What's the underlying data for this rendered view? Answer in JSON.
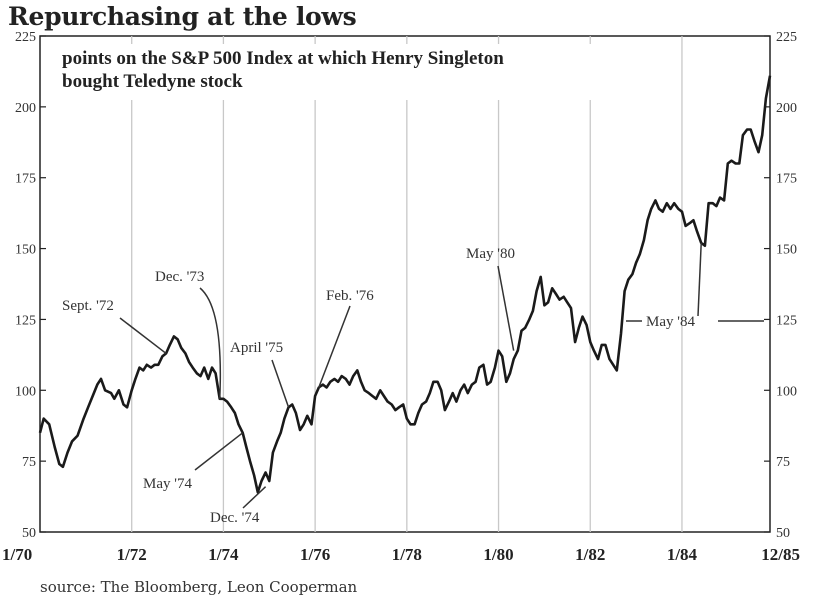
{
  "title": "Repurchasing at the lows",
  "source": "source: The Bloomberg, Leon Cooperman",
  "chart_data": {
    "type": "line",
    "subtitle_lines": [
      "points on the S&P 500 Index at which Henry Singleton",
      "bought Teledyne stock"
    ],
    "xlim": [
      1970.0,
      1985.92
    ],
    "ylim": [
      50,
      225
    ],
    "yticks": [
      50,
      75,
      100,
      125,
      150,
      175,
      200,
      225
    ],
    "xticks": [
      {
        "label": "1/70",
        "x": 1970.0
      },
      {
        "label": "1/72",
        "x": 1972.0
      },
      {
        "label": "1/74",
        "x": 1974.0
      },
      {
        "label": "1/76",
        "x": 1976.0
      },
      {
        "label": "1/78",
        "x": 1978.0
      },
      {
        "label": "1/80",
        "x": 1980.0
      },
      {
        "label": "1/82",
        "x": 1982.0
      },
      {
        "label": "1/84",
        "x": 1984.0
      },
      {
        "label": "12/85",
        "x": 1985.92
      }
    ],
    "grid": "vertical",
    "series": [
      {
        "color": "#1a1a1a",
        "points": [
          [
            1970.0,
            85
          ],
          [
            1970.08,
            90
          ],
          [
            1970.2,
            88
          ],
          [
            1970.32,
            80
          ],
          [
            1970.42,
            74
          ],
          [
            1970.5,
            73
          ],
          [
            1970.6,
            78
          ],
          [
            1970.7,
            82
          ],
          [
            1970.82,
            84
          ],
          [
            1970.95,
            90
          ],
          [
            1971.05,
            94
          ],
          [
            1971.15,
            98
          ],
          [
            1971.25,
            102
          ],
          [
            1971.33,
            104
          ],
          [
            1971.42,
            100
          ],
          [
            1971.55,
            99
          ],
          [
            1971.62,
            97
          ],
          [
            1971.72,
            100
          ],
          [
            1971.82,
            95
          ],
          [
            1971.9,
            94
          ],
          [
            1972.0,
            100
          ],
          [
            1972.08,
            104
          ],
          [
            1972.17,
            108
          ],
          [
            1972.25,
            107
          ],
          [
            1972.33,
            109
          ],
          [
            1972.42,
            108
          ],
          [
            1972.5,
            109
          ],
          [
            1972.58,
            109
          ],
          [
            1972.67,
            112
          ],
          [
            1972.75,
            113
          ],
          [
            1972.83,
            116
          ],
          [
            1972.92,
            119
          ],
          [
            1973.0,
            118
          ],
          [
            1973.08,
            115
          ],
          [
            1973.17,
            113
          ],
          [
            1973.25,
            110
          ],
          [
            1973.33,
            108
          ],
          [
            1973.42,
            106
          ],
          [
            1973.5,
            105
          ],
          [
            1973.58,
            108
          ],
          [
            1973.67,
            104
          ],
          [
            1973.75,
            108
          ],
          [
            1973.83,
            106
          ],
          [
            1973.92,
            97
          ],
          [
            1974.0,
            97
          ],
          [
            1974.08,
            96
          ],
          [
            1974.17,
            94
          ],
          [
            1974.25,
            92
          ],
          [
            1974.33,
            88
          ],
          [
            1974.42,
            85
          ],
          [
            1974.5,
            80
          ],
          [
            1974.58,
            75
          ],
          [
            1974.67,
            70
          ],
          [
            1974.75,
            64
          ],
          [
            1974.83,
            68
          ],
          [
            1974.92,
            71
          ],
          [
            1975.0,
            68
          ],
          [
            1975.08,
            78
          ],
          [
            1975.17,
            82
          ],
          [
            1975.25,
            85
          ],
          [
            1975.33,
            90
          ],
          [
            1975.42,
            94
          ],
          [
            1975.5,
            95
          ],
          [
            1975.58,
            92
          ],
          [
            1975.67,
            86
          ],
          [
            1975.75,
            88
          ],
          [
            1975.83,
            91
          ],
          [
            1975.92,
            88
          ],
          [
            1976.0,
            98
          ],
          [
            1976.08,
            101
          ],
          [
            1976.17,
            102
          ],
          [
            1976.25,
            101
          ],
          [
            1976.33,
            103
          ],
          [
            1976.42,
            104
          ],
          [
            1976.5,
            103
          ],
          [
            1976.58,
            105
          ],
          [
            1976.67,
            104
          ],
          [
            1976.75,
            102
          ],
          [
            1976.83,
            105
          ],
          [
            1976.92,
            107
          ],
          [
            1977.0,
            103
          ],
          [
            1977.08,
            100
          ],
          [
            1977.17,
            99
          ],
          [
            1977.25,
            98
          ],
          [
            1977.33,
            97
          ],
          [
            1977.42,
            100
          ],
          [
            1977.5,
            98
          ],
          [
            1977.58,
            96
          ],
          [
            1977.67,
            95
          ],
          [
            1977.75,
            93
          ],
          [
            1977.83,
            94
          ],
          [
            1977.92,
            95
          ],
          [
            1978.0,
            90
          ],
          [
            1978.08,
            88
          ],
          [
            1978.17,
            88
          ],
          [
            1978.25,
            92
          ],
          [
            1978.33,
            95
          ],
          [
            1978.42,
            96
          ],
          [
            1978.5,
            99
          ],
          [
            1978.58,
            103
          ],
          [
            1978.67,
            103
          ],
          [
            1978.75,
            100
          ],
          [
            1978.83,
            93
          ],
          [
            1978.92,
            96
          ],
          [
            1979.0,
            99
          ],
          [
            1979.08,
            96
          ],
          [
            1979.17,
            100
          ],
          [
            1979.25,
            102
          ],
          [
            1979.33,
            99
          ],
          [
            1979.42,
            102
          ],
          [
            1979.5,
            103
          ],
          [
            1979.58,
            108
          ],
          [
            1979.67,
            109
          ],
          [
            1979.75,
            102
          ],
          [
            1979.83,
            103
          ],
          [
            1979.92,
            108
          ],
          [
            1980.0,
            114
          ],
          [
            1980.08,
            112
          ],
          [
            1980.17,
            103
          ],
          [
            1980.25,
            106
          ],
          [
            1980.33,
            111
          ],
          [
            1980.42,
            114
          ],
          [
            1980.5,
            121
          ],
          [
            1980.58,
            122
          ],
          [
            1980.67,
            125
          ],
          [
            1980.75,
            128
          ],
          [
            1980.83,
            135
          ],
          [
            1980.92,
            140
          ],
          [
            1981.0,
            130
          ],
          [
            1981.08,
            131
          ],
          [
            1981.17,
            136
          ],
          [
            1981.25,
            134
          ],
          [
            1981.33,
            132
          ],
          [
            1981.42,
            133
          ],
          [
            1981.5,
            131
          ],
          [
            1981.58,
            129
          ],
          [
            1981.67,
            117
          ],
          [
            1981.75,
            122
          ],
          [
            1981.83,
            126
          ],
          [
            1981.92,
            123
          ],
          [
            1982.0,
            117
          ],
          [
            1982.08,
            114
          ],
          [
            1982.17,
            111
          ],
          [
            1982.25,
            116
          ],
          [
            1982.33,
            116
          ],
          [
            1982.42,
            111
          ],
          [
            1982.5,
            109
          ],
          [
            1982.58,
            107
          ],
          [
            1982.67,
            120
          ],
          [
            1982.75,
            135
          ],
          [
            1982.83,
            139
          ],
          [
            1982.92,
            141
          ],
          [
            1983.0,
            145
          ],
          [
            1983.08,
            148
          ],
          [
            1983.17,
            153
          ],
          [
            1983.25,
            160
          ],
          [
            1983.33,
            164
          ],
          [
            1983.42,
            167
          ],
          [
            1983.5,
            164
          ],
          [
            1983.58,
            163
          ],
          [
            1983.67,
            166
          ],
          [
            1983.75,
            164
          ],
          [
            1983.83,
            166
          ],
          [
            1983.92,
            164
          ],
          [
            1984.0,
            163
          ],
          [
            1984.08,
            158
          ],
          [
            1984.17,
            159
          ],
          [
            1984.25,
            160
          ],
          [
            1984.33,
            156
          ],
          [
            1984.42,
            152
          ],
          [
            1984.5,
            151
          ],
          [
            1984.58,
            166
          ],
          [
            1984.67,
            166
          ],
          [
            1984.75,
            165
          ],
          [
            1984.83,
            168
          ],
          [
            1984.92,
            167
          ],
          [
            1985.0,
            180
          ],
          [
            1985.08,
            181
          ],
          [
            1985.17,
            180
          ],
          [
            1985.25,
            180
          ],
          [
            1985.33,
            190
          ],
          [
            1985.42,
            192
          ],
          [
            1985.5,
            192
          ],
          [
            1985.58,
            188
          ],
          [
            1985.67,
            184
          ],
          [
            1985.75,
            190
          ],
          [
            1985.83,
            203
          ],
          [
            1985.92,
            211
          ]
        ]
      }
    ],
    "annotations": [
      {
        "text": "Sept. '72",
        "x": 1972.75,
        "y": 113
      },
      {
        "text": "Dec. '73",
        "x": 1973.92,
        "y": 97
      },
      {
        "text": "May '74",
        "x": 1974.42,
        "y": 85
      },
      {
        "text": "Dec. '74",
        "x": 1974.92,
        "y": 66
      },
      {
        "text": "April '75",
        "x": 1975.42,
        "y": 94
      },
      {
        "text": "Feb. '76",
        "x": 1976.08,
        "y": 101
      },
      {
        "text": "May '80",
        "x": 1980.33,
        "y": 114
      },
      {
        "text": "May '84",
        "x": 1984.42,
        "y": 152
      }
    ]
  }
}
